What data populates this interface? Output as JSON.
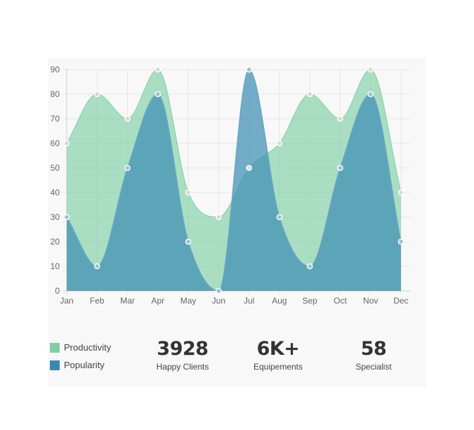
{
  "chart_data": {
    "type": "area",
    "categories": [
      "Jan",
      "Feb",
      "Mar",
      "Apr",
      "May",
      "Jun",
      "Jul",
      "Aug",
      "Sep",
      "Oct",
      "Nov",
      "Dec"
    ],
    "y_ticks": [
      0,
      10,
      20,
      30,
      40,
      50,
      60,
      70,
      80,
      90
    ],
    "ylim": [
      0,
      90
    ],
    "grid": true,
    "series": [
      {
        "name": "Productivity",
        "values": [
          60,
          80,
          70,
          90,
          40,
          30,
          50,
          60,
          80,
          70,
          90,
          40
        ],
        "fill": "#7fcfa5",
        "fill_opacity": 0.65,
        "stroke": "#8fd6b0",
        "point_color": "#d8d8d8"
      },
      {
        "name": "Popularity",
        "values": [
          30,
          10,
          50,
          80,
          20,
          0,
          90,
          30,
          10,
          50,
          80,
          20
        ],
        "fill": "#3f8fb4",
        "fill_opacity": 0.72,
        "stroke": "#6aa6c4",
        "point_color": "#9fbfd3"
      }
    ],
    "legend_position": "bottom-left"
  },
  "legend": [
    {
      "label": "Productivity",
      "color": "#7fcfa5"
    },
    {
      "label": "Popularity",
      "color": "#3d87b4"
    }
  ],
  "stats": [
    {
      "value": "3928",
      "label": "Happy Clients"
    },
    {
      "value": "6K+",
      "label": "Equipements"
    },
    {
      "value": "58",
      "label": "Specialist"
    }
  ]
}
